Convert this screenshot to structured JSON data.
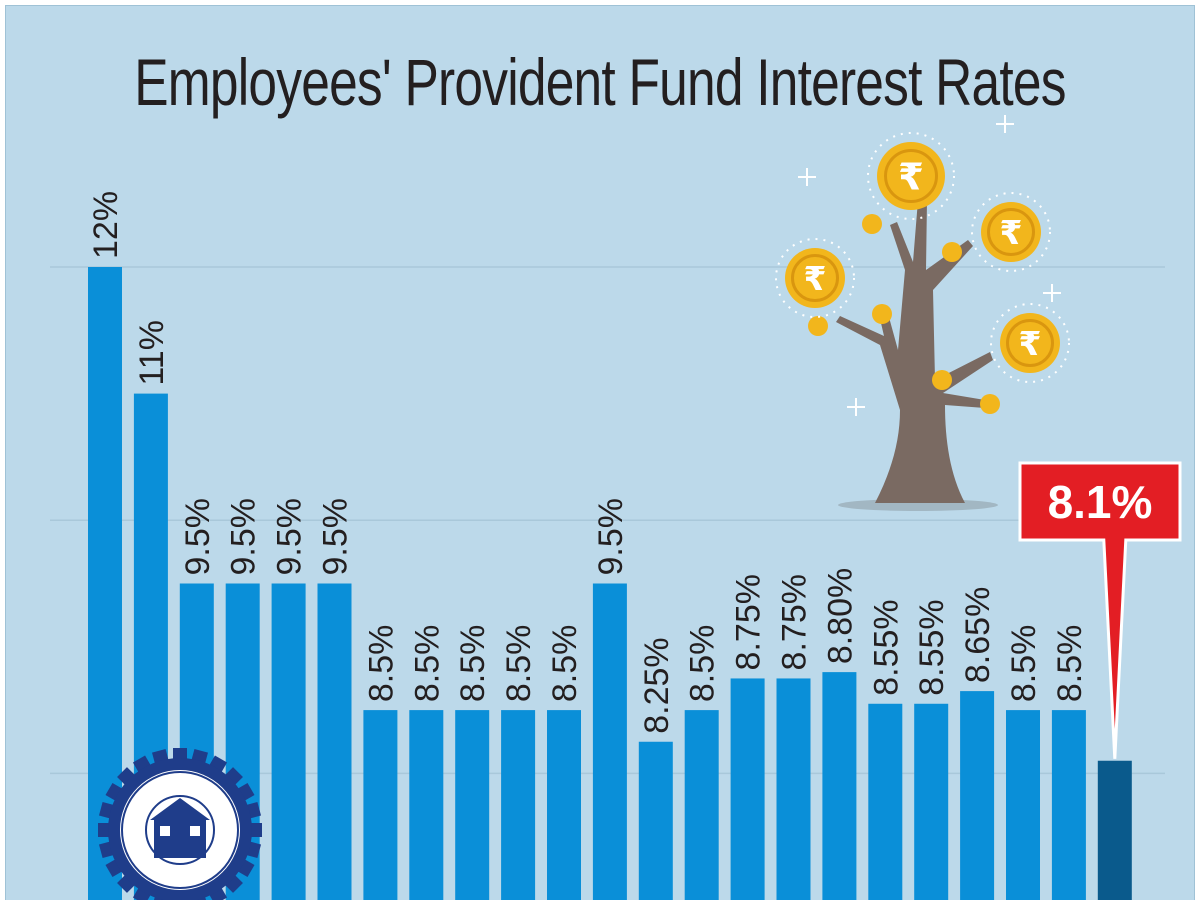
{
  "chart_data": {
    "type": "bar",
    "title": "Employees' Provident Fund Interest Rates",
    "xlabel": "",
    "ylabel": "",
    "ylim": [
      7,
      12.7
    ],
    "gridlines": [
      8,
      10,
      12
    ],
    "grid": true,
    "values": [
      12,
      11,
      9.5,
      9.5,
      9.5,
      9.5,
      8.5,
      8.5,
      8.5,
      8.5,
      8.5,
      9.5,
      8.25,
      8.5,
      8.75,
      8.75,
      8.8,
      8.55,
      8.55,
      8.65,
      8.5,
      8.5,
      8.1
    ],
    "labels": [
      "12%",
      "11%",
      "9.5%",
      "9.5%",
      "9.5%",
      "9.5%",
      "8.5%",
      "8.5%",
      "8.5%",
      "8.5%",
      "8.5%",
      "9.5%",
      "8.25%",
      "8.5%",
      "8.75%",
      "8.75%",
      "8.80%",
      "8.55%",
      "8.55%",
      "8.65%",
      "8.5%",
      "8.5%",
      ""
    ],
    "highlight": {
      "index": 22,
      "label": "8.1%"
    },
    "colors": {
      "background": "#bcd9ea",
      "bar": "#0a8fd8",
      "highlight_bar": "#0a5a8c",
      "callout": "#e31e24",
      "gridline": "#a9c8da"
    }
  },
  "decorations": {
    "tree": "money-tree-illustration",
    "coin_symbol": "₹",
    "logo": "epfo-emblem"
  }
}
